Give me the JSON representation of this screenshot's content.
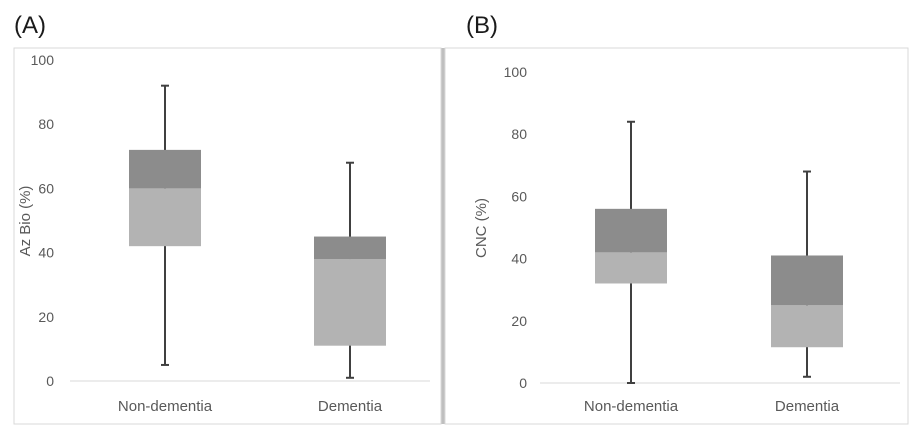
{
  "chart_data": [
    {
      "type": "box",
      "panel_label": "(A)",
      "ylabel": "Az Bio (%)",
      "ylim": [
        0,
        100
      ],
      "yticks": [
        0,
        20,
        40,
        60,
        80,
        100
      ],
      "categories": [
        "Non-dementia",
        "Dementia"
      ],
      "boxes": [
        {
          "min": 5,
          "q1": 42,
          "median": 60,
          "q3": 72,
          "max": 92
        },
        {
          "min": 1,
          "q1": 11,
          "median": 38,
          "q3": 45,
          "max": 68
        }
      ],
      "colors": {
        "upper_box": "#8c8c8c",
        "lower_box": "#b3b3b3",
        "whisker": "#404040"
      }
    },
    {
      "type": "box",
      "panel_label": "(B)",
      "ylabel": "CNC (%)",
      "ylim": [
        0,
        100
      ],
      "yticks": [
        0,
        20,
        40,
        60,
        80,
        100
      ],
      "categories": [
        "Non-dementia",
        "Dementia"
      ],
      "boxes": [
        {
          "min": 0,
          "q1": 32,
          "median": 42,
          "q3": 56,
          "max": 84
        },
        {
          "min": 2,
          "q1": 11.5,
          "median": 25,
          "q3": 41,
          "max": 68
        }
      ],
      "colors": {
        "upper_box": "#8c8c8c",
        "lower_box": "#b3b3b3",
        "whisker": "#404040"
      }
    }
  ]
}
